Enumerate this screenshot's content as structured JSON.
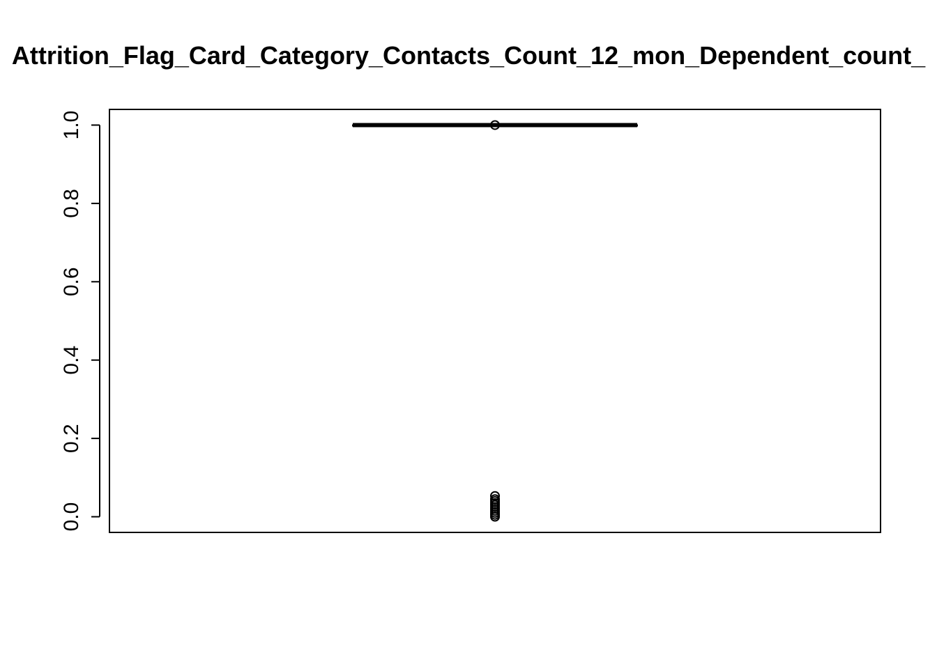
{
  "chart_data": {
    "type": "boxplot",
    "title": "Attrition_Flag_Card_Category_Contacts_Count_12_mon_Dependent_count_",
    "xlabel": "",
    "ylabel": "",
    "ylim": [
      -0.04,
      1.04
    ],
    "yticks": [
      0.0,
      0.2,
      0.4,
      0.6,
      0.8,
      1.0
    ],
    "ytick_labels": [
      "0.0",
      "0.2",
      "0.4",
      "0.6",
      "0.8",
      "1.0"
    ],
    "grid": false,
    "box": {
      "min": 1.0,
      "q1": 1.0,
      "median": 1.0,
      "q3": 1.0,
      "max": 1.0
    },
    "outliers": [
      1.0,
      0.053,
      0.045,
      0.04,
      0.035,
      0.03,
      0.025,
      0.02,
      0.015,
      0.01,
      0.005,
      0.0
    ]
  }
}
